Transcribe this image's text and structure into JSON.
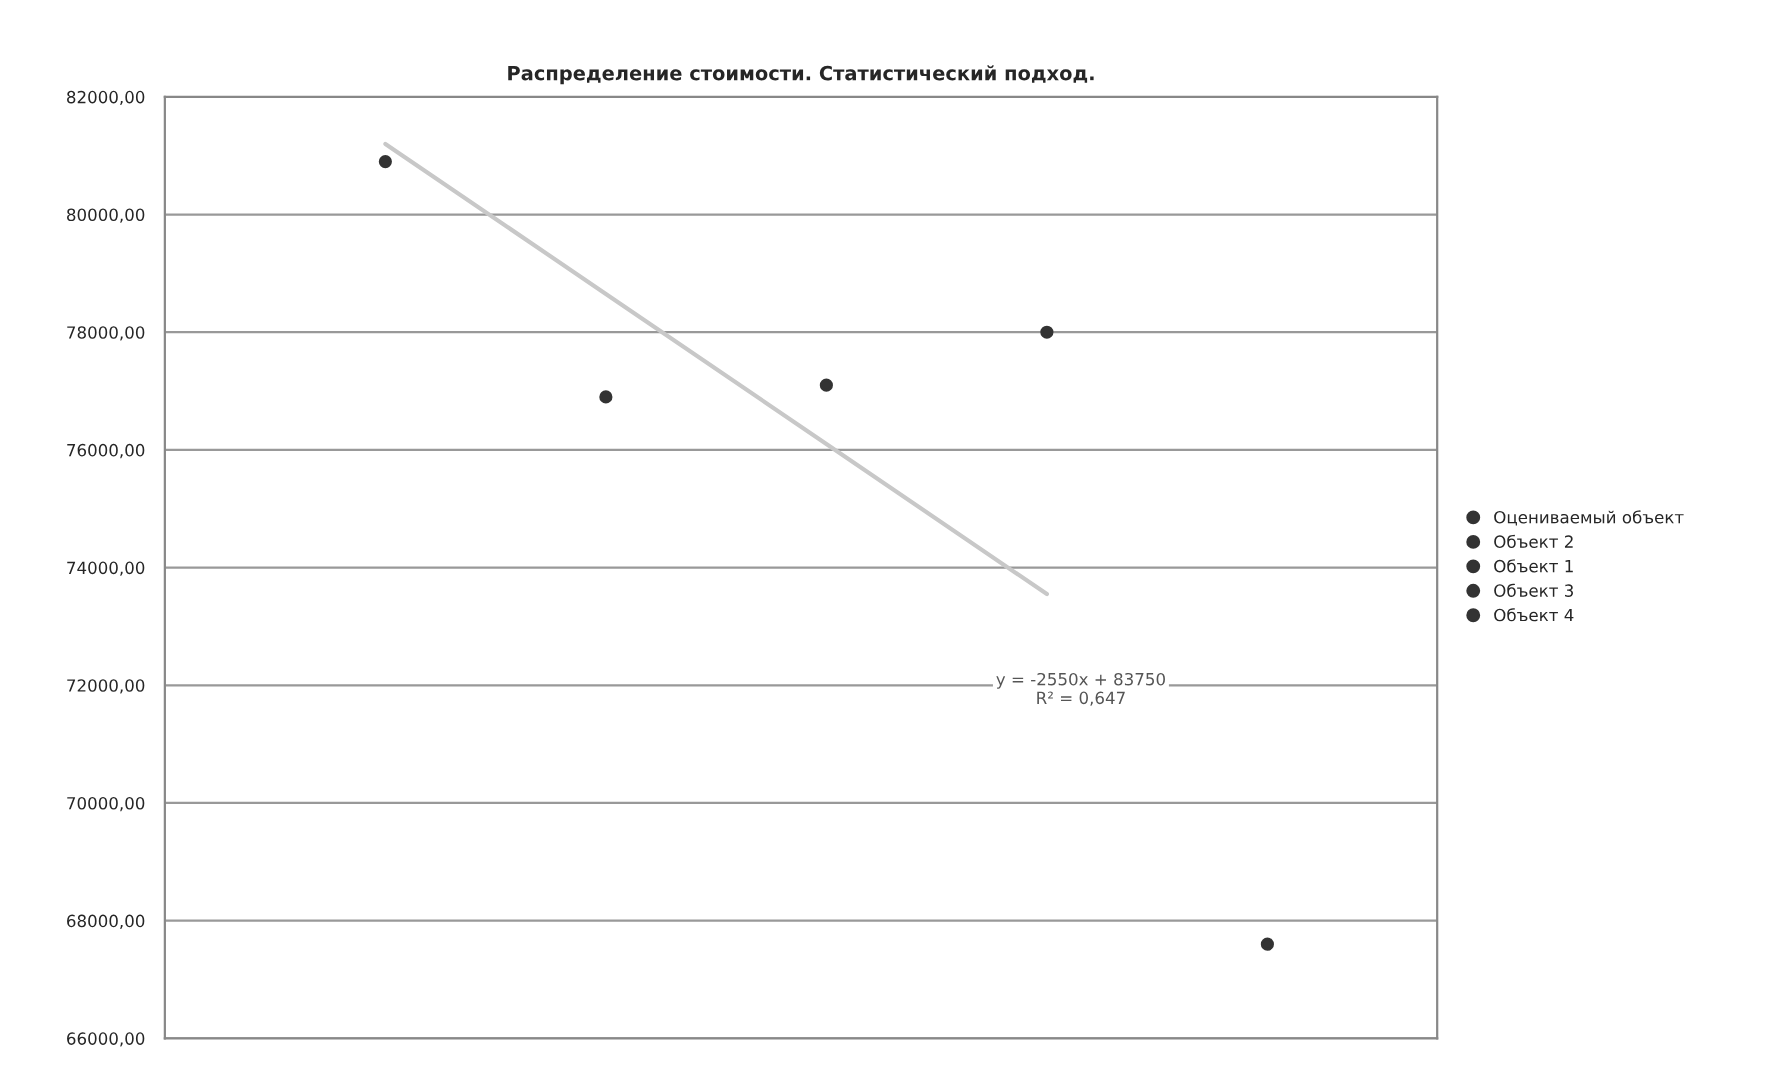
{
  "chart_data": {
    "type": "scatter",
    "title": "Распределение стоимости. Статистический подход.",
    "categories": [
      null,
      null,
      null,
      null,
      null
    ],
    "series": [
      {
        "name": "Оцениваемый объект",
        "color": "#333333",
        "values": [
          80900,
          null,
          null,
          null,
          null
        ]
      },
      {
        "name": "Объект 2",
        "color": "#333333",
        "values": [
          null,
          76900,
          null,
          null,
          null
        ]
      },
      {
        "name": "Объект 1",
        "color": "#333333",
        "values": [
          null,
          null,
          77100,
          null,
          null
        ]
      },
      {
        "name": "Объект 3",
        "color": "#333333",
        "values": [
          null,
          null,
          null,
          78000,
          null
        ]
      },
      {
        "name": "Объект 4",
        "color": "#333333",
        "values": [
          null,
          null,
          null,
          null,
          67600
        ]
      },
      {
        "type": "line",
        "color": "#c8c8c8",
        "marker": "none",
        "values": [
          81200,
          78650,
          76100,
          73550,
          null
        ]
      }
    ],
    "ylim": [
      66000,
      82000
    ],
    "yticks": [
      {
        "value": 66000,
        "label": "66000,00"
      },
      {
        "value": 68000,
        "label": "68000,00"
      },
      {
        "value": 70000,
        "label": "70000,00"
      },
      {
        "value": 72000,
        "label": "72000,00"
      },
      {
        "value": 74000,
        "label": "74000,00"
      },
      {
        "value": 76000,
        "label": "76000,00"
      },
      {
        "value": 78000,
        "label": "78000,00"
      },
      {
        "value": 80000,
        "label": "80000,00"
      },
      {
        "value": 82000,
        "label": "82000,00"
      }
    ],
    "tick_labels": "y",
    "grid": "y",
    "legend": "right",
    "marker": "circle",
    "annotations": [
      "y = -2550x + 83750\nR² = 0,647"
    ]
  }
}
